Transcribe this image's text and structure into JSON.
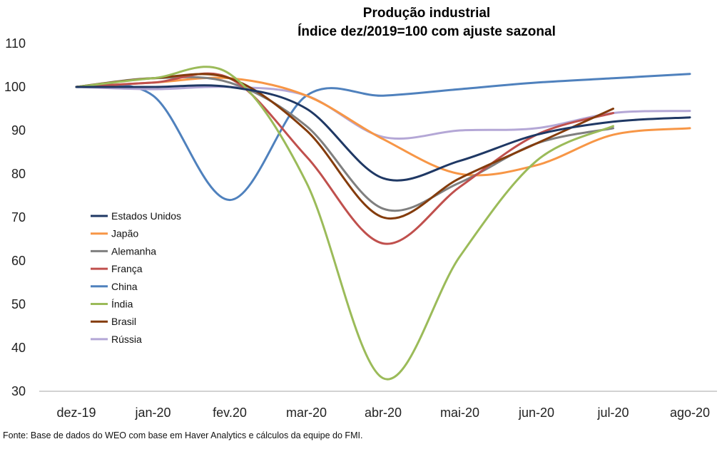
{
  "chart_data": {
    "type": "line",
    "title": "Produção industrial",
    "subtitle": "Índice dez/2019=100 com ajuste sazonal",
    "xlabel": "",
    "ylabel": "",
    "categories": [
      "dez-19",
      "jan-20",
      "fev.20",
      "mar-20",
      "abr-20",
      "mai-20",
      "jun-20",
      "jul-20",
      "ago-20"
    ],
    "ylim": [
      30,
      110
    ],
    "yticks": [
      30,
      40,
      50,
      60,
      70,
      80,
      90,
      100,
      110
    ],
    "grid": false,
    "legend_position": "left",
    "series": [
      {
        "name": "Estados Unidos",
        "color": "#1F3864",
        "values": [
          100,
          100,
          100,
          95,
          79,
          83,
          89,
          92,
          93
        ]
      },
      {
        "name": "Japão",
        "color": "#F79646",
        "values": [
          100,
          101,
          102,
          98,
          88,
          80,
          82,
          89,
          90.5
        ]
      },
      {
        "name": "Alemanha",
        "color": "#7F7F7F",
        "values": [
          100,
          102,
          101,
          91,
          72,
          78,
          87,
          90.5,
          null
        ]
      },
      {
        "name": "França",
        "color": "#C0504D",
        "values": [
          100,
          101,
          102,
          84,
          64,
          77,
          89,
          94,
          null
        ]
      },
      {
        "name": "China",
        "color": "#4F81BD",
        "values": [
          100,
          98,
          74,
          98,
          98,
          99.5,
          101,
          102,
          103
        ]
      },
      {
        "name": "Índia",
        "color": "#9BBB59",
        "values": [
          100,
          102,
          103,
          78,
          33,
          61,
          83,
          91,
          null
        ]
      },
      {
        "name": "Brasil",
        "color": "#843C0C",
        "values": [
          100,
          102,
          102,
          90,
          70,
          79,
          87,
          95,
          null
        ]
      },
      {
        "name": "Rússia",
        "color": "#B4A7D6",
        "values": [
          100,
          99.5,
          100,
          98,
          88.5,
          90,
          90.5,
          94,
          94.5
        ]
      }
    ]
  },
  "source": "Fonte: Base de dados do WEO com base em Haver Analytics e cálculos da equipe do FMI."
}
